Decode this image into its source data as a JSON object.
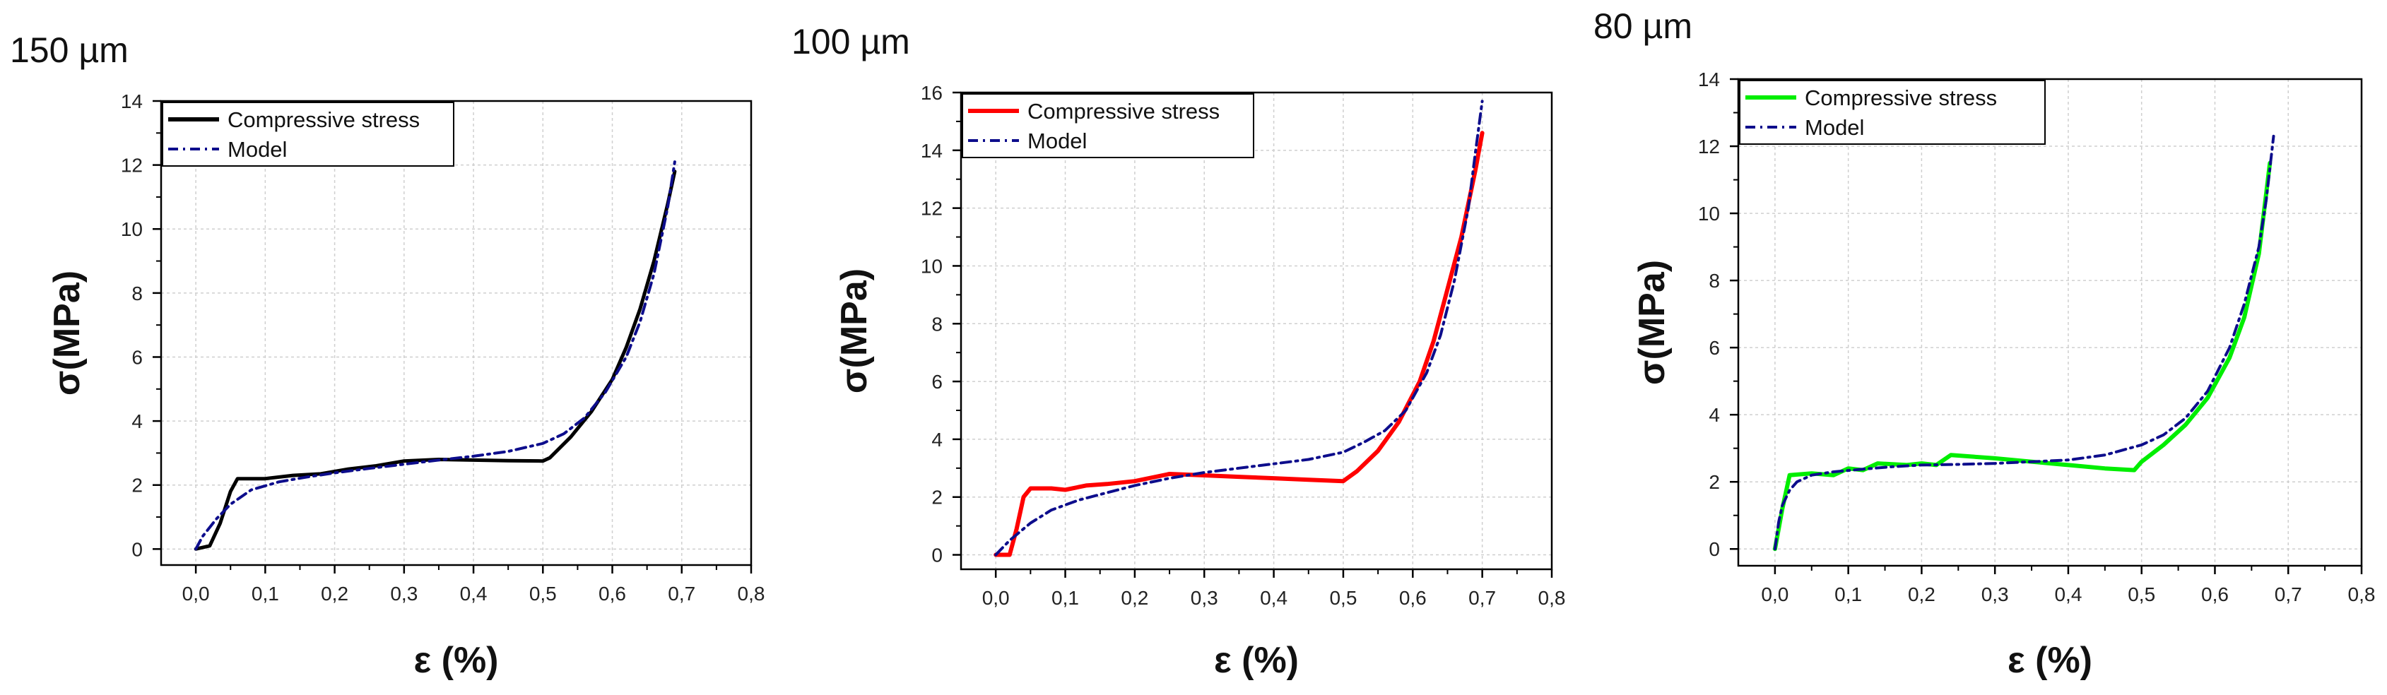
{
  "chart_data": [
    {
      "type": "line",
      "title": "150 µm",
      "xlabel": "ε (%)",
      "ylabel": "σ(MPa)",
      "xlim": [
        -0.05,
        0.8
      ],
      "ylim": [
        -0.5,
        14
      ],
      "xticks": [
        "0,0",
        "0,1",
        "0,2",
        "0,3",
        "0,4",
        "0,5",
        "0,6",
        "0,7",
        "0,8"
      ],
      "xtick_values": [
        0,
        0.1,
        0.2,
        0.3,
        0.4,
        0.5,
        0.6,
        0.7,
        0.8
      ],
      "yticks": [
        "0",
        "2",
        "4",
        "6",
        "8",
        "10",
        "12",
        "14"
      ],
      "ytick_values": [
        0,
        2,
        4,
        6,
        8,
        10,
        12,
        14
      ],
      "grid": true,
      "legend_position": "top-left",
      "series": [
        {
          "name": "Compressive stress",
          "color": "#000000",
          "style": "solid",
          "x": [
            0.0,
            0.02,
            0.035,
            0.05,
            0.06,
            0.1,
            0.14,
            0.18,
            0.22,
            0.26,
            0.3,
            0.35,
            0.4,
            0.45,
            0.5,
            0.51,
            0.54,
            0.57,
            0.6,
            0.62,
            0.64,
            0.66,
            0.68,
            0.69
          ],
          "y": [
            0.0,
            0.1,
            0.8,
            1.8,
            2.2,
            2.2,
            2.3,
            2.35,
            2.5,
            2.6,
            2.75,
            2.8,
            2.78,
            2.76,
            2.75,
            2.85,
            3.5,
            4.3,
            5.3,
            6.3,
            7.5,
            9.0,
            10.8,
            11.8
          ]
        },
        {
          "name": "Model",
          "color": "#0d0d8c",
          "style": "dashdot",
          "x": [
            0.0,
            0.01,
            0.03,
            0.05,
            0.08,
            0.12,
            0.16,
            0.2,
            0.25,
            0.3,
            0.35,
            0.4,
            0.45,
            0.5,
            0.53,
            0.56,
            0.59,
            0.62,
            0.64,
            0.66,
            0.68,
            0.69
          ],
          "y": [
            0.0,
            0.4,
            0.95,
            1.4,
            1.85,
            2.1,
            2.25,
            2.38,
            2.52,
            2.65,
            2.78,
            2.9,
            3.05,
            3.3,
            3.6,
            4.1,
            4.9,
            6.0,
            7.1,
            8.6,
            10.7,
            12.1
          ]
        }
      ]
    },
    {
      "type": "line",
      "title": "100 µm",
      "xlabel": "ε (%)",
      "ylabel": "σ(MPa)",
      "xlim": [
        -0.05,
        0.8
      ],
      "ylim": [
        -0.5,
        16
      ],
      "xticks": [
        "0,0",
        "0,1",
        "0,2",
        "0,3",
        "0,4",
        "0,5",
        "0,6",
        "0,7",
        "0,8"
      ],
      "xtick_values": [
        0,
        0.1,
        0.2,
        0.3,
        0.4,
        0.5,
        0.6,
        0.7,
        0.8
      ],
      "yticks": [
        "0",
        "2",
        "4",
        "6",
        "8",
        "10",
        "12",
        "14",
        "16"
      ],
      "ytick_values": [
        0,
        2,
        4,
        6,
        8,
        10,
        12,
        14,
        16
      ],
      "grid": true,
      "legend_position": "top-left",
      "series": [
        {
          "name": "Compressive stress",
          "color": "#ff0000",
          "style": "solid",
          "x": [
            0.0,
            0.02,
            0.03,
            0.04,
            0.05,
            0.08,
            0.1,
            0.13,
            0.16,
            0.2,
            0.25,
            0.3,
            0.35,
            0.4,
            0.45,
            0.5,
            0.52,
            0.55,
            0.58,
            0.61,
            0.63,
            0.65,
            0.67,
            0.69,
            0.7
          ],
          "y": [
            0.0,
            0.0,
            0.9,
            2.0,
            2.3,
            2.3,
            2.25,
            2.4,
            2.45,
            2.55,
            2.8,
            2.75,
            2.7,
            2.65,
            2.6,
            2.55,
            2.9,
            3.6,
            4.6,
            6.0,
            7.4,
            9.2,
            11.0,
            13.3,
            14.6
          ],
          "line_width": 6
        },
        {
          "name": "Model",
          "color": "#0d0d8c",
          "style": "dashdot",
          "x": [
            0.0,
            0.02,
            0.05,
            0.08,
            0.12,
            0.16,
            0.2,
            0.25,
            0.3,
            0.35,
            0.4,
            0.45,
            0.5,
            0.53,
            0.56,
            0.59,
            0.62,
            0.64,
            0.66,
            0.68,
            0.69,
            0.7
          ],
          "y": [
            0.0,
            0.5,
            1.1,
            1.55,
            1.9,
            2.15,
            2.4,
            2.65,
            2.85,
            3.0,
            3.15,
            3.3,
            3.55,
            3.9,
            4.3,
            5.0,
            6.3,
            7.6,
            9.5,
            12.0,
            13.9,
            15.7
          ]
        }
      ]
    },
    {
      "type": "line",
      "title": "80 µm",
      "xlabel": "ε (%)",
      "ylabel": "σ(MPa)",
      "xlim": [
        -0.05,
        0.8
      ],
      "ylim": [
        -0.5,
        14
      ],
      "xticks": [
        "0,0",
        "0,1",
        "0,2",
        "0,3",
        "0,4",
        "0,5",
        "0,6",
        "0,7",
        "0,8"
      ],
      "xtick_values": [
        0,
        0.1,
        0.2,
        0.3,
        0.4,
        0.5,
        0.6,
        0.7,
        0.8
      ],
      "yticks": [
        "0",
        "2",
        "4",
        "6",
        "8",
        "10",
        "12",
        "14"
      ],
      "ytick_values": [
        0,
        2,
        4,
        6,
        8,
        10,
        12,
        14
      ],
      "grid": true,
      "legend_position": "top-left",
      "series": [
        {
          "name": "Compressive stress",
          "color": "#00ee00",
          "style": "solid",
          "x": [
            0.0,
            0.01,
            0.02,
            0.05,
            0.08,
            0.1,
            0.12,
            0.14,
            0.18,
            0.2,
            0.22,
            0.24,
            0.3,
            0.35,
            0.4,
            0.45,
            0.49,
            0.5,
            0.53,
            0.56,
            0.59,
            0.62,
            0.64,
            0.66,
            0.675
          ],
          "y": [
            0.0,
            1.2,
            2.2,
            2.25,
            2.2,
            2.4,
            2.35,
            2.55,
            2.5,
            2.55,
            2.5,
            2.8,
            2.7,
            2.6,
            2.5,
            2.4,
            2.35,
            2.6,
            3.1,
            3.7,
            4.5,
            5.7,
            6.9,
            8.8,
            11.5
          ],
          "line_width": 6
        },
        {
          "name": "Model",
          "color": "#0d0d8c",
          "style": "dashdot",
          "x": [
            0.0,
            0.005,
            0.01,
            0.02,
            0.03,
            0.05,
            0.08,
            0.12,
            0.16,
            0.2,
            0.25,
            0.3,
            0.35,
            0.4,
            0.45,
            0.5,
            0.53,
            0.56,
            0.59,
            0.62,
            0.64,
            0.66,
            0.67,
            0.68
          ],
          "y": [
            0.0,
            0.8,
            1.3,
            1.75,
            2.0,
            2.2,
            2.3,
            2.38,
            2.45,
            2.5,
            2.52,
            2.55,
            2.6,
            2.65,
            2.8,
            3.1,
            3.4,
            3.9,
            4.7,
            6.0,
            7.3,
            9.0,
            10.4,
            12.3
          ]
        }
      ]
    }
  ]
}
